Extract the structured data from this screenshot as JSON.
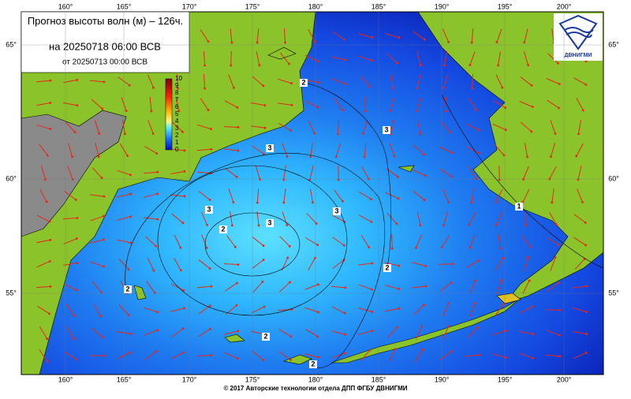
{
  "header": {
    "title": "Прогноз высоты волн (м) – 126ч.",
    "valid": "на 20250718 06:00 ВСВ",
    "issued": "от 20250713 00:00 ВСВ"
  },
  "logo": {
    "text": "ДВНИГМИ"
  },
  "map": {
    "lon_labels": [
      "160°",
      "165°",
      "170°",
      "175°",
      "180°",
      "185°",
      "190°",
      "195°",
      "200°"
    ],
    "lat_labels": [
      "65°",
      "60°",
      "55°"
    ],
    "colorbar": [
      0,
      1,
      2,
      3,
      4,
      5,
      6,
      7,
      8,
      9,
      10
    ],
    "contour_labels": [
      2,
      3,
      3,
      3,
      2,
      3,
      3,
      1,
      2,
      2,
      2,
      2
    ]
  },
  "footer": "© 2017 Авторские технологии отдела ДПП ФГБУ ДВНИГМИ"
}
